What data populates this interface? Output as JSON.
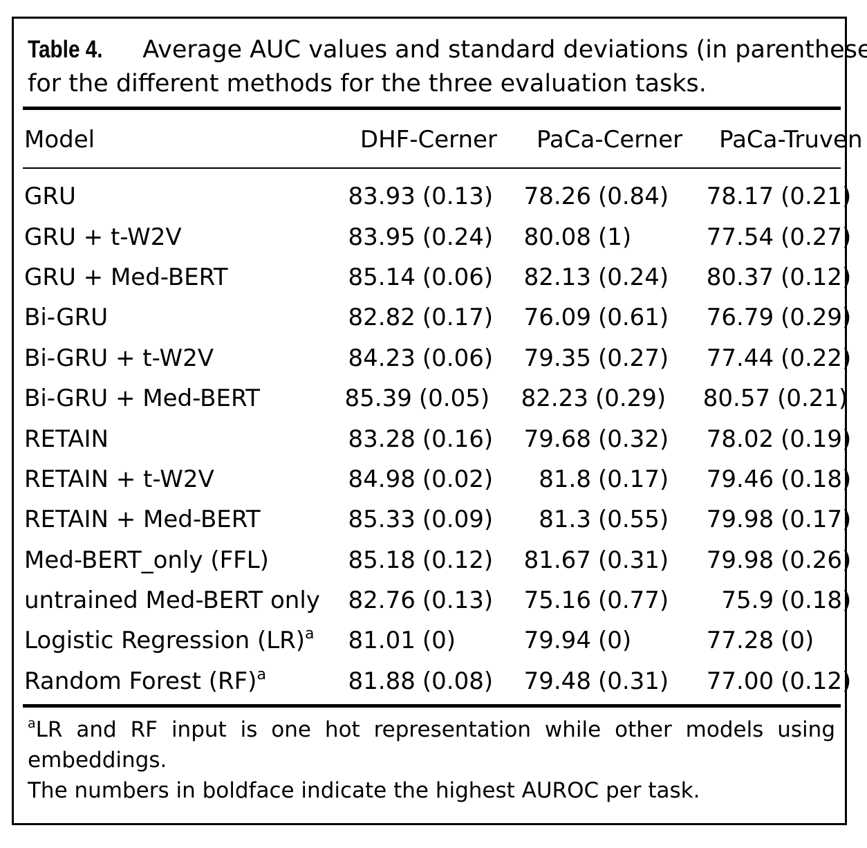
{
  "caption": {
    "label": "Table 4.",
    "line1": "Average AUC values and standard deviations (in parentheses)",
    "line2": "for the different methods for the three evaluation tasks."
  },
  "headers": [
    "Model",
    "DHF-Cerner",
    "PaCa-Cerner",
    "PaCa-Truven"
  ],
  "rows": [
    {
      "model": "GRU",
      "sup": "",
      "v": [
        [
          "83.93",
          "(0.13)"
        ],
        [
          "78.26",
          "(0.84)"
        ],
        [
          "78.17",
          "(0.21)"
        ]
      ]
    },
    {
      "model": "GRU + t-W2V",
      "sup": "",
      "v": [
        [
          "83.95",
          "(0.24)"
        ],
        [
          "80.08",
          "(1)"
        ],
        [
          "77.54",
          "(0.27)"
        ]
      ]
    },
    {
      "model": "GRU + Med-BERT",
      "sup": "",
      "v": [
        [
          "85.14",
          "(0.06)"
        ],
        [
          "82.13",
          "(0.24)"
        ],
        [
          "80.37",
          "(0.12)"
        ]
      ]
    },
    {
      "model": "Bi-GRU",
      "sup": "",
      "v": [
        [
          "82.82",
          "(0.17)"
        ],
        [
          "76.09",
          "(0.61)"
        ],
        [
          "76.79",
          "(0.29)"
        ]
      ]
    },
    {
      "model": "Bi-GRU + t-W2V",
      "sup": "",
      "v": [
        [
          "84.23",
          "(0.06)"
        ],
        [
          "79.35",
          "(0.27)"
        ],
        [
          "77.44",
          "(0.22)"
        ]
      ]
    },
    {
      "model": "Bi-GRU + Med-BERT",
      "sup": "",
      "v": [
        [
          "85.39",
          "(0.05)"
        ],
        [
          "82.23",
          "(0.29)"
        ],
        [
          "80.57",
          "(0.21)"
        ]
      ]
    },
    {
      "model": "RETAIN",
      "sup": "",
      "v": [
        [
          "83.28",
          "(0.16)"
        ],
        [
          "79.68",
          "(0.32)"
        ],
        [
          "78.02",
          "(0.19)"
        ]
      ]
    },
    {
      "model": "RETAIN + t-W2V",
      "sup": "",
      "v": [
        [
          "84.98",
          "(0.02)"
        ],
        [
          "81.8",
          "(0.17)"
        ],
        [
          "79.46",
          "(0.18)"
        ]
      ]
    },
    {
      "model": "RETAIN + Med-BERT",
      "sup": "",
      "v": [
        [
          "85.33",
          "(0.09)"
        ],
        [
          "81.3",
          "(0.55)"
        ],
        [
          "79.98",
          "(0.17)"
        ]
      ]
    },
    {
      "model": "Med-BERT_only (FFL)",
      "sup": "",
      "v": [
        [
          "85.18",
          "(0.12)"
        ],
        [
          "81.67",
          "(0.31)"
        ],
        [
          "79.98",
          "(0.26)"
        ]
      ]
    },
    {
      "model": "untrained Med-BERT only",
      "sup": "",
      "v": [
        [
          "82.76",
          "(0.13)"
        ],
        [
          "75.16",
          "(0.77)"
        ],
        [
          "75.9",
          "(0.18)"
        ]
      ]
    },
    {
      "model": "Logistic Regression (LR)",
      "sup": "a",
      "v": [
        [
          "81.01",
          "(0)"
        ],
        [
          "79.94",
          "(0)"
        ],
        [
          "77.28",
          "(0)"
        ]
      ]
    },
    {
      "model": "Random Forest (RF)",
      "sup": "a",
      "v": [
        [
          "81.88",
          "(0.08)"
        ],
        [
          "79.48",
          "(0.31)"
        ],
        [
          "77.00",
          "(0.12)"
        ]
      ]
    }
  ],
  "footnote": {
    "sup": "a",
    "line1": "LR and RF input is one hot representation while other models using",
    "line2": "embeddings.",
    "line3": "The numbers in boldface indicate the highest AUROC per task."
  }
}
